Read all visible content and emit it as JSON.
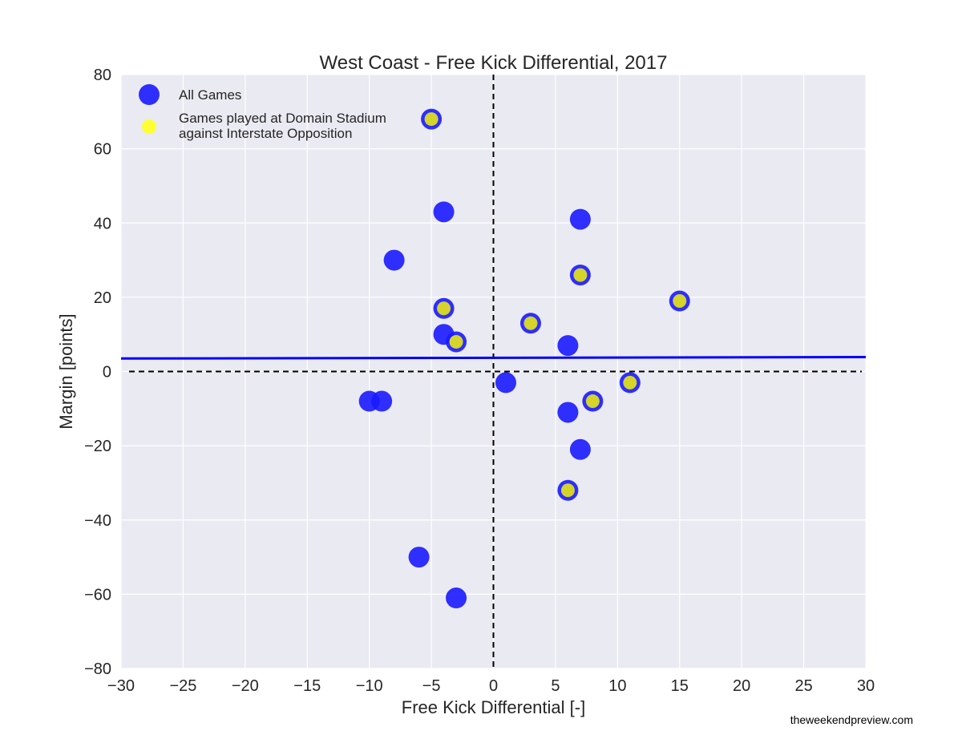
{
  "chart_data": {
    "type": "scatter",
    "title": "West Coast - Free Kick Differential, 2017",
    "xlabel": "Free Kick Differential [-]",
    "ylabel": "Margin [points]",
    "xlim": [
      -30,
      30
    ],
    "ylim": [
      -80,
      80
    ],
    "xticks": [
      -30,
      -25,
      -20,
      -15,
      -10,
      -5,
      0,
      5,
      10,
      15,
      20,
      25,
      30
    ],
    "yticks": [
      -80,
      -60,
      -40,
      -20,
      0,
      20,
      40,
      60,
      80
    ],
    "xtick_labels": [
      "−30",
      "−25",
      "−20",
      "−15",
      "−10",
      "−5",
      "0",
      "5",
      "10",
      "15",
      "20",
      "25",
      "30"
    ],
    "ytick_labels": [
      "−80",
      "−60",
      "−40",
      "−20",
      "0",
      "20",
      "40",
      "60",
      "80"
    ],
    "grid": true,
    "legend_position": "top-left",
    "series": [
      {
        "name": "All Games",
        "color": "#1a1aff",
        "points": [
          {
            "x": -5,
            "y": 68
          },
          {
            "x": -4,
            "y": 43
          },
          {
            "x": 7,
            "y": 41
          },
          {
            "x": -8,
            "y": 30
          },
          {
            "x": 7,
            "y": 26
          },
          {
            "x": 15,
            "y": 19
          },
          {
            "x": -4,
            "y": 17
          },
          {
            "x": 3,
            "y": 13
          },
          {
            "x": -4,
            "y": 10
          },
          {
            "x": -3,
            "y": 8
          },
          {
            "x": 6,
            "y": 7
          },
          {
            "x": 1,
            "y": -3
          },
          {
            "x": 11,
            "y": -3
          },
          {
            "x": -10,
            "y": -8
          },
          {
            "x": -9,
            "y": -8
          },
          {
            "x": 8,
            "y": -8
          },
          {
            "x": 6,
            "y": -11
          },
          {
            "x": 7,
            "y": -21
          },
          {
            "x": 6,
            "y": -32
          },
          {
            "x": -6,
            "y": -50
          },
          {
            "x": -3,
            "y": -61
          }
        ]
      },
      {
        "name": "Games played at Domain Stadium against Interstate Opposition",
        "legend_lines": [
          "Games played at Domain Stadium",
          "against Interstate Opposition"
        ],
        "color": "#ffff33",
        "points": [
          {
            "x": -5,
            "y": 68
          },
          {
            "x": 7,
            "y": 26
          },
          {
            "x": 15,
            "y": 19
          },
          {
            "x": -4,
            "y": 17
          },
          {
            "x": 3,
            "y": 13
          },
          {
            "x": -3,
            "y": 8
          },
          {
            "x": 11,
            "y": -3
          },
          {
            "x": 8,
            "y": -8
          },
          {
            "x": 6,
            "y": -32
          }
        ]
      }
    ],
    "trendline": {
      "color": "#0000ff",
      "x": [
        -30,
        30
      ],
      "y": [
        3.5,
        3.9
      ]
    },
    "reference_lines": [
      {
        "axis": "x",
        "value": 0
      },
      {
        "axis": "y",
        "value": 0
      }
    ]
  },
  "credit": "theweekendpreview.com"
}
